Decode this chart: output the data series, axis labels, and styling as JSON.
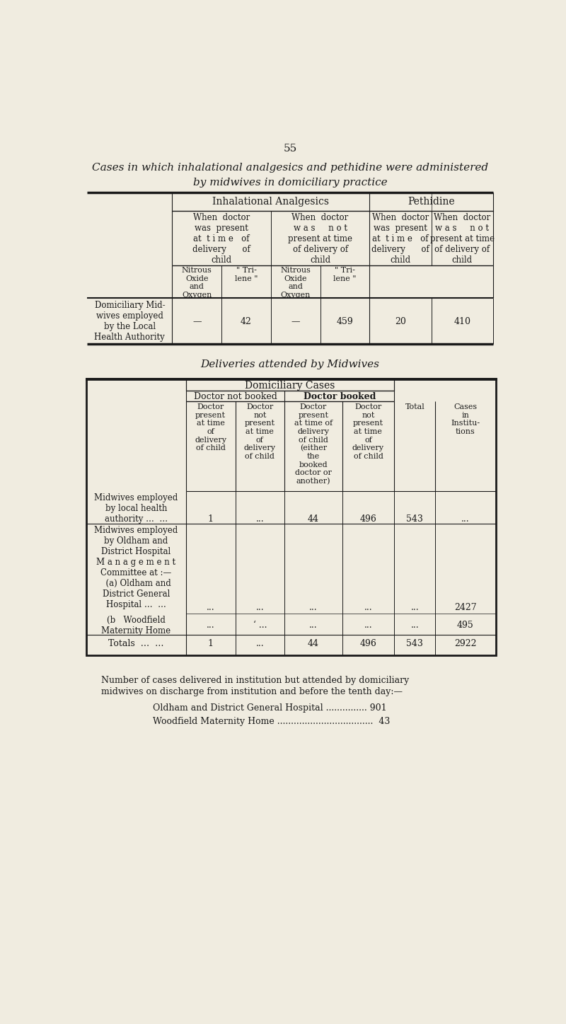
{
  "page_number": "55",
  "bg_color": "#f0ece0",
  "title_line1": "Cases in which inhalational analgesics and pethidine were administered",
  "title_line2": "by midwives in domiciliary practice",
  "t1_row_label": "Domiciliary Mid-\nwives employed\nby the Local\nHealth Authority",
  "t1_row_data": [
    "—",
    "42",
    "—",
    "459",
    "20",
    "410"
  ],
  "subtitle2": "Deliveries attended by Midwives",
  "footer_line1": "Number of cases delivered in institution but attended by domiciliary",
  "footer_line2": "midwives on discharge from institution and before the tenth day:—",
  "footer_item1_label": "Oldham and District General Hospital",
  "footer_item1_dots": "...............",
  "footer_item1_val": "901",
  "footer_item2_label": "Woodfield Maternity Home",
  "footer_item2_dots": "...................................",
  "footer_item2_val": "43"
}
